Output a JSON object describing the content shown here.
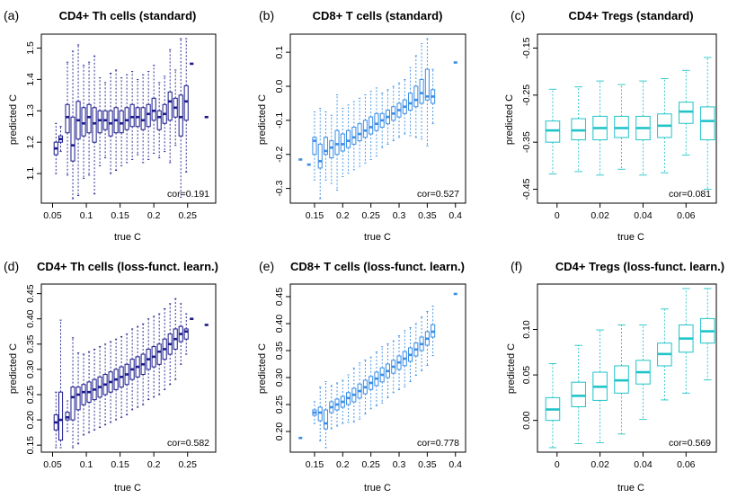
{
  "chart_data": [
    {
      "type": "box",
      "panel_label": "(a)",
      "title": "CD4+ Th cells (standard)",
      "xlabel": "true C",
      "ylabel": "predicted C",
      "annotation": "cor=0.191",
      "color": "#1a1a8c",
      "xlim": [
        0.04,
        0.285
      ],
      "ylim": [
        1.02,
        1.53
      ],
      "xticks": [
        0.05,
        0.1,
        0.15,
        0.2,
        0.25
      ],
      "xtick_labels": [
        "0.05",
        "0.1",
        "0.15",
        "0.2",
        "0.25"
      ],
      "yticks": [
        1.1,
        1.2,
        1.3,
        1.4,
        1.5
      ],
      "ytick_labels": [
        "1.1",
        "1.2",
        "1.3",
        "1.4",
        "1.5"
      ],
      "box_width": 0.0055,
      "boxes": [
        {
          "x": 0.055,
          "q1": 1.16,
          "median": 1.18,
          "q3": 1.2
        },
        {
          "x": 0.062,
          "q1": 1.2,
          "median": 1.21,
          "q3": 1.22
        },
        {
          "x": 0.072,
          "q1": 1.23,
          "median": 1.28,
          "q3": 1.32
        },
        {
          "x": 0.08,
          "q1": 1.14,
          "median": 1.19,
          "q3": 1.28
        },
        {
          "x": 0.088,
          "q1": 1.21,
          "median": 1.27,
          "q3": 1.33
        },
        {
          "x": 0.096,
          "q1": 1.22,
          "median": 1.26,
          "q3": 1.31
        },
        {
          "x": 0.104,
          "q1": 1.23,
          "median": 1.28,
          "q3": 1.32
        },
        {
          "x": 0.112,
          "q1": 1.2,
          "median": 1.26,
          "q3": 1.31
        },
        {
          "x": 0.12,
          "q1": 1.23,
          "median": 1.27,
          "q3": 1.3
        },
        {
          "x": 0.128,
          "q1": 1.24,
          "median": 1.27,
          "q3": 1.3
        },
        {
          "x": 0.136,
          "q1": 1.22,
          "median": 1.26,
          "q3": 1.3
        },
        {
          "x": 0.144,
          "q1": 1.23,
          "median": 1.27,
          "q3": 1.31
        },
        {
          "x": 0.152,
          "q1": 1.23,
          "median": 1.26,
          "q3": 1.3
        },
        {
          "x": 0.16,
          "q1": 1.24,
          "median": 1.27,
          "q3": 1.31
        },
        {
          "x": 0.168,
          "q1": 1.25,
          "median": 1.28,
          "q3": 1.32
        },
        {
          "x": 0.176,
          "q1": 1.25,
          "median": 1.28,
          "q3": 1.31
        },
        {
          "x": 0.184,
          "q1": 1.24,
          "median": 1.27,
          "q3": 1.31
        },
        {
          "x": 0.192,
          "q1": 1.25,
          "median": 1.29,
          "q3": 1.32
        },
        {
          "x": 0.2,
          "q1": 1.27,
          "median": 1.3,
          "q3": 1.34
        },
        {
          "x": 0.208,
          "q1": 1.24,
          "median": 1.28,
          "q3": 1.3
        },
        {
          "x": 0.216,
          "q1": 1.26,
          "median": 1.29,
          "q3": 1.32
        },
        {
          "x": 0.224,
          "q1": 1.27,
          "median": 1.33,
          "q3": 1.36
        },
        {
          "x": 0.232,
          "q1": 1.28,
          "median": 1.31,
          "q3": 1.34
        },
        {
          "x": 0.24,
          "q1": 1.22,
          "median": 1.28,
          "q3": 1.35
        },
        {
          "x": 0.248,
          "q1": 1.27,
          "median": 1.33,
          "q3": 1.38
        },
        {
          "x": 0.256,
          "q1": 1.45,
          "median": 1.45,
          "q3": 1.45
        },
        {
          "x": 0.278,
          "q1": 1.28,
          "median": 1.28,
          "q3": 1.28
        }
      ]
    },
    {
      "type": "box",
      "panel_label": "(b)",
      "title": "CD8+ T cells (standard)",
      "xlabel": "true C",
      "ylabel": "predicted C",
      "annotation": "cor=0.527",
      "color": "#3a8ee6",
      "xlim": [
        0.115,
        0.41
      ],
      "ylim": [
        -0.33,
        0.14
      ],
      "xticks": [
        0.15,
        0.2,
        0.25,
        0.3,
        0.35,
        0.4
      ],
      "xtick_labels": [
        "0.15",
        "0.2",
        "0.25",
        "0.3",
        "0.35",
        "0.4"
      ],
      "yticks": [
        -0.3,
        -0.2,
        -0.1,
        0.0,
        0.1
      ],
      "ytick_labels": [
        "-0.3",
        "-0.2",
        "-0.1",
        "0.0",
        "0.1"
      ],
      "box_width": 0.0065,
      "boxes": [
        {
          "x": 0.125,
          "q1": -0.215,
          "median": -0.215,
          "q3": -0.215
        },
        {
          "x": 0.14,
          "q1": -0.23,
          "median": -0.23,
          "q3": -0.23
        },
        {
          "x": 0.15,
          "q1": -0.2,
          "median": -0.16,
          "q3": -0.15
        },
        {
          "x": 0.16,
          "q1": -0.24,
          "median": -0.22,
          "q3": -0.17
        },
        {
          "x": 0.17,
          "q1": -0.2,
          "median": -0.19,
          "q3": -0.15
        },
        {
          "x": 0.18,
          "q1": -0.21,
          "median": -0.18,
          "q3": -0.16
        },
        {
          "x": 0.19,
          "q1": -0.2,
          "median": -0.17,
          "q3": -0.13
        },
        {
          "x": 0.2,
          "q1": -0.19,
          "median": -0.17,
          "q3": -0.14
        },
        {
          "x": 0.21,
          "q1": -0.18,
          "median": -0.16,
          "q3": -0.13
        },
        {
          "x": 0.22,
          "q1": -0.17,
          "median": -0.15,
          "q3": -0.12
        },
        {
          "x": 0.23,
          "q1": -0.16,
          "median": -0.14,
          "q3": -0.11
        },
        {
          "x": 0.24,
          "q1": -0.15,
          "median": -0.13,
          "q3": -0.1
        },
        {
          "x": 0.25,
          "q1": -0.14,
          "median": -0.12,
          "q3": -0.09
        },
        {
          "x": 0.26,
          "q1": -0.13,
          "median": -0.11,
          "q3": -0.08
        },
        {
          "x": 0.27,
          "q1": -0.12,
          "median": -0.1,
          "q3": -0.08
        },
        {
          "x": 0.28,
          "q1": -0.11,
          "median": -0.09,
          "q3": -0.07
        },
        {
          "x": 0.29,
          "q1": -0.1,
          "median": -0.08,
          "q3": -0.06
        },
        {
          "x": 0.3,
          "q1": -0.09,
          "median": -0.07,
          "q3": -0.05
        },
        {
          "x": 0.31,
          "q1": -0.08,
          "median": -0.06,
          "q3": -0.04
        },
        {
          "x": 0.32,
          "q1": -0.07,
          "median": -0.05,
          "q3": -0.02
        },
        {
          "x": 0.33,
          "q1": -0.06,
          "median": -0.04,
          "q3": 0.0
        },
        {
          "x": 0.34,
          "q1": -0.05,
          "median": -0.02,
          "q3": 0.02
        },
        {
          "x": 0.35,
          "q1": -0.04,
          "median": -0.03,
          "q3": 0.05
        },
        {
          "x": 0.36,
          "q1": -0.05,
          "median": -0.03,
          "q3": -0.01
        },
        {
          "x": 0.4,
          "q1": 0.07,
          "median": 0.07,
          "q3": 0.07
        }
      ]
    },
    {
      "type": "box",
      "panel_label": "(c)",
      "title": "CD4+ Tregs (standard)",
      "xlabel": "true C",
      "ylabel": "predicted C",
      "annotation": "cor=0.081",
      "color": "#20c4c8",
      "xlim": [
        -0.007,
        0.072
      ],
      "ylim": [
        -0.47,
        -0.13
      ],
      "xticks": [
        0,
        0.02,
        0.04,
        0.06
      ],
      "xtick_labels": [
        "0",
        "0.02",
        "0.04",
        "0.06"
      ],
      "yticks": [
        -0.45,
        -0.35,
        -0.25,
        -0.15
      ],
      "ytick_labels": [
        "-0.45",
        "-0.35",
        "-0.25",
        "-0.15"
      ],
      "box_width": 0.0065,
      "boxes": [
        {
          "x": -0.002,
          "q1": -0.35,
          "median": -0.325,
          "q3": -0.305
        },
        {
          "x": 0.01,
          "q1": -0.345,
          "median": -0.325,
          "q3": -0.3
        },
        {
          "x": 0.02,
          "q1": -0.345,
          "median": -0.32,
          "q3": -0.295
        },
        {
          "x": 0.03,
          "q1": -0.34,
          "median": -0.32,
          "q3": -0.295
        },
        {
          "x": 0.04,
          "q1": -0.345,
          "median": -0.32,
          "q3": -0.295
        },
        {
          "x": 0.05,
          "q1": -0.34,
          "median": -0.315,
          "q3": -0.29
        },
        {
          "x": 0.06,
          "q1": -0.31,
          "median": -0.285,
          "q3": -0.265
        },
        {
          "x": 0.07,
          "q1": -0.345,
          "median": -0.305,
          "q3": -0.275
        }
      ]
    },
    {
      "type": "box",
      "panel_label": "(d)",
      "title": "CD4+ Th cells (loss-funct. learn.)",
      "xlabel": "true C",
      "ylabel": "predicted C",
      "annotation": "cor=0.582",
      "color": "#1a1a8c",
      "xlim": [
        0.04,
        0.285
      ],
      "ylim": [
        0.145,
        0.46
      ],
      "xticks": [
        0.05,
        0.1,
        0.15,
        0.2,
        0.25
      ],
      "xtick_labels": [
        "0.05",
        "0.1",
        "0.15",
        "0.2",
        "0.25"
      ],
      "yticks": [
        0.15,
        0.2,
        0.25,
        0.3,
        0.35,
        0.4,
        0.45
      ],
      "ytick_labels": [
        "0.15",
        "0.20",
        "0.25",
        "0.30",
        "0.35",
        "0.40",
        "0.45"
      ],
      "box_width": 0.0055,
      "boxes": [
        {
          "x": 0.055,
          "q1": 0.18,
          "median": 0.195,
          "q3": 0.21
        },
        {
          "x": 0.062,
          "q1": 0.16,
          "median": 0.2,
          "q3": 0.255
        },
        {
          "x": 0.072,
          "q1": 0.2,
          "median": 0.205,
          "q3": 0.215
        },
        {
          "x": 0.08,
          "q1": 0.2,
          "median": 0.245,
          "q3": 0.265
        },
        {
          "x": 0.088,
          "q1": 0.22,
          "median": 0.25,
          "q3": 0.265
        },
        {
          "x": 0.096,
          "q1": 0.23,
          "median": 0.255,
          "q3": 0.27
        },
        {
          "x": 0.104,
          "q1": 0.235,
          "median": 0.255,
          "q3": 0.275
        },
        {
          "x": 0.112,
          "q1": 0.24,
          "median": 0.26,
          "q3": 0.28
        },
        {
          "x": 0.12,
          "q1": 0.245,
          "median": 0.265,
          "q3": 0.285
        },
        {
          "x": 0.128,
          "q1": 0.25,
          "median": 0.27,
          "q3": 0.29
        },
        {
          "x": 0.136,
          "q1": 0.255,
          "median": 0.275,
          "q3": 0.295
        },
        {
          "x": 0.144,
          "q1": 0.26,
          "median": 0.28,
          "q3": 0.3
        },
        {
          "x": 0.152,
          "q1": 0.265,
          "median": 0.285,
          "q3": 0.305
        },
        {
          "x": 0.16,
          "q1": 0.27,
          "median": 0.29,
          "q3": 0.31
        },
        {
          "x": 0.168,
          "q1": 0.28,
          "median": 0.3,
          "q3": 0.32
        },
        {
          "x": 0.176,
          "q1": 0.285,
          "median": 0.305,
          "q3": 0.325
        },
        {
          "x": 0.184,
          "q1": 0.29,
          "median": 0.31,
          "q3": 0.33
        },
        {
          "x": 0.192,
          "q1": 0.3,
          "median": 0.32,
          "q3": 0.34
        },
        {
          "x": 0.2,
          "q1": 0.305,
          "median": 0.325,
          "q3": 0.345
        },
        {
          "x": 0.208,
          "q1": 0.31,
          "median": 0.335,
          "q3": 0.35
        },
        {
          "x": 0.216,
          "q1": 0.32,
          "median": 0.34,
          "q3": 0.36
        },
        {
          "x": 0.224,
          "q1": 0.33,
          "median": 0.35,
          "q3": 0.37
        },
        {
          "x": 0.232,
          "q1": 0.34,
          "median": 0.36,
          "q3": 0.38
        },
        {
          "x": 0.24,
          "q1": 0.355,
          "median": 0.37,
          "q3": 0.385
        },
        {
          "x": 0.248,
          "q1": 0.36,
          "median": 0.375,
          "q3": 0.38
        },
        {
          "x": 0.256,
          "q1": 0.4,
          "median": 0.4,
          "q3": 0.4
        },
        {
          "x": 0.278,
          "q1": 0.388,
          "median": 0.388,
          "q3": 0.388
        }
      ]
    },
    {
      "type": "box",
      "panel_label": "(e)",
      "title": "CD8+ T cells (loss-funct. learn.)",
      "xlabel": "true C",
      "ylabel": "predicted C",
      "annotation": "cor=0.778",
      "color": "#3a8ee6",
      "xlim": [
        0.115,
        0.41
      ],
      "ylim": [
        0.17,
        0.465
      ],
      "xticks": [
        0.15,
        0.2,
        0.25,
        0.3,
        0.35,
        0.4
      ],
      "xtick_labels": [
        "0.15",
        "0.2",
        "0.25",
        "0.3",
        "0.35",
        "0.4"
      ],
      "yticks": [
        0.2,
        0.25,
        0.3,
        0.35,
        0.4,
        0.45
      ],
      "ytick_labels": [
        "0.20",
        "0.25",
        "0.30",
        "0.35",
        "0.40",
        "0.45"
      ],
      "box_width": 0.0065,
      "boxes": [
        {
          "x": 0.125,
          "q1": 0.188,
          "median": 0.188,
          "q3": 0.188
        },
        {
          "x": 0.15,
          "q1": 0.23,
          "median": 0.235,
          "q3": 0.24
        },
        {
          "x": 0.16,
          "q1": 0.22,
          "median": 0.235,
          "q3": 0.245
        },
        {
          "x": 0.17,
          "q1": 0.205,
          "median": 0.215,
          "q3": 0.24
        },
        {
          "x": 0.18,
          "q1": 0.235,
          "median": 0.245,
          "q3": 0.255
        },
        {
          "x": 0.19,
          "q1": 0.24,
          "median": 0.25,
          "q3": 0.26
        },
        {
          "x": 0.2,
          "q1": 0.245,
          "median": 0.255,
          "q3": 0.265
        },
        {
          "x": 0.21,
          "q1": 0.25,
          "median": 0.262,
          "q3": 0.272
        },
        {
          "x": 0.22,
          "q1": 0.255,
          "median": 0.268,
          "q3": 0.28
        },
        {
          "x": 0.23,
          "q1": 0.262,
          "median": 0.275,
          "q3": 0.288
        },
        {
          "x": 0.24,
          "q1": 0.27,
          "median": 0.282,
          "q3": 0.295
        },
        {
          "x": 0.25,
          "q1": 0.278,
          "median": 0.29,
          "q3": 0.302
        },
        {
          "x": 0.26,
          "q1": 0.285,
          "median": 0.298,
          "q3": 0.31
        },
        {
          "x": 0.27,
          "q1": 0.292,
          "median": 0.305,
          "q3": 0.318
        },
        {
          "x": 0.28,
          "q1": 0.3,
          "median": 0.312,
          "q3": 0.325
        },
        {
          "x": 0.29,
          "q1": 0.308,
          "median": 0.32,
          "q3": 0.332
        },
        {
          "x": 0.3,
          "q1": 0.315,
          "median": 0.328,
          "q3": 0.34
        },
        {
          "x": 0.31,
          "q1": 0.322,
          "median": 0.335,
          "q3": 0.348
        },
        {
          "x": 0.32,
          "q1": 0.33,
          "median": 0.342,
          "q3": 0.355
        },
        {
          "x": 0.33,
          "q1": 0.34,
          "median": 0.352,
          "q3": 0.364
        },
        {
          "x": 0.34,
          "q1": 0.35,
          "median": 0.362,
          "q3": 0.375
        },
        {
          "x": 0.35,
          "q1": 0.36,
          "median": 0.372,
          "q3": 0.385
        },
        {
          "x": 0.36,
          "q1": 0.375,
          "median": 0.385,
          "q3": 0.398
        },
        {
          "x": 0.4,
          "q1": 0.455,
          "median": 0.455,
          "q3": 0.455
        }
      ]
    },
    {
      "type": "box",
      "panel_label": "(f)",
      "title": "CD4+ Tregs (loss-funct. learn.)",
      "xlabel": "true C",
      "ylabel": "predicted C",
      "annotation": "cor=0.569",
      "color": "#20c4c8",
      "xlim": [
        -0.007,
        0.072
      ],
      "ylim": [
        -0.03,
        0.145
      ],
      "xticks": [
        0,
        0.02,
        0.04,
        0.06
      ],
      "xtick_labels": [
        "0",
        "0.02",
        "0.04",
        "0.06"
      ],
      "yticks": [
        0.0,
        0.05,
        0.1
      ],
      "ytick_labels": [
        "0.00",
        "0.05",
        "0.10"
      ],
      "box_width": 0.0065,
      "boxes": [
        {
          "x": -0.002,
          "q1": 0.0,
          "median": 0.012,
          "q3": 0.025
        },
        {
          "x": 0.01,
          "q1": 0.015,
          "median": 0.027,
          "q3": 0.042
        },
        {
          "x": 0.02,
          "q1": 0.022,
          "median": 0.037,
          "q3": 0.053
        },
        {
          "x": 0.03,
          "q1": 0.03,
          "median": 0.044,
          "q3": 0.06
        },
        {
          "x": 0.04,
          "q1": 0.04,
          "median": 0.053,
          "q3": 0.066
        },
        {
          "x": 0.05,
          "q1": 0.06,
          "median": 0.073,
          "q3": 0.085
        },
        {
          "x": 0.06,
          "q1": 0.075,
          "median": 0.09,
          "q3": 0.105
        },
        {
          "x": 0.07,
          "q1": 0.085,
          "median": 0.098,
          "q3": 0.112
        }
      ]
    }
  ]
}
